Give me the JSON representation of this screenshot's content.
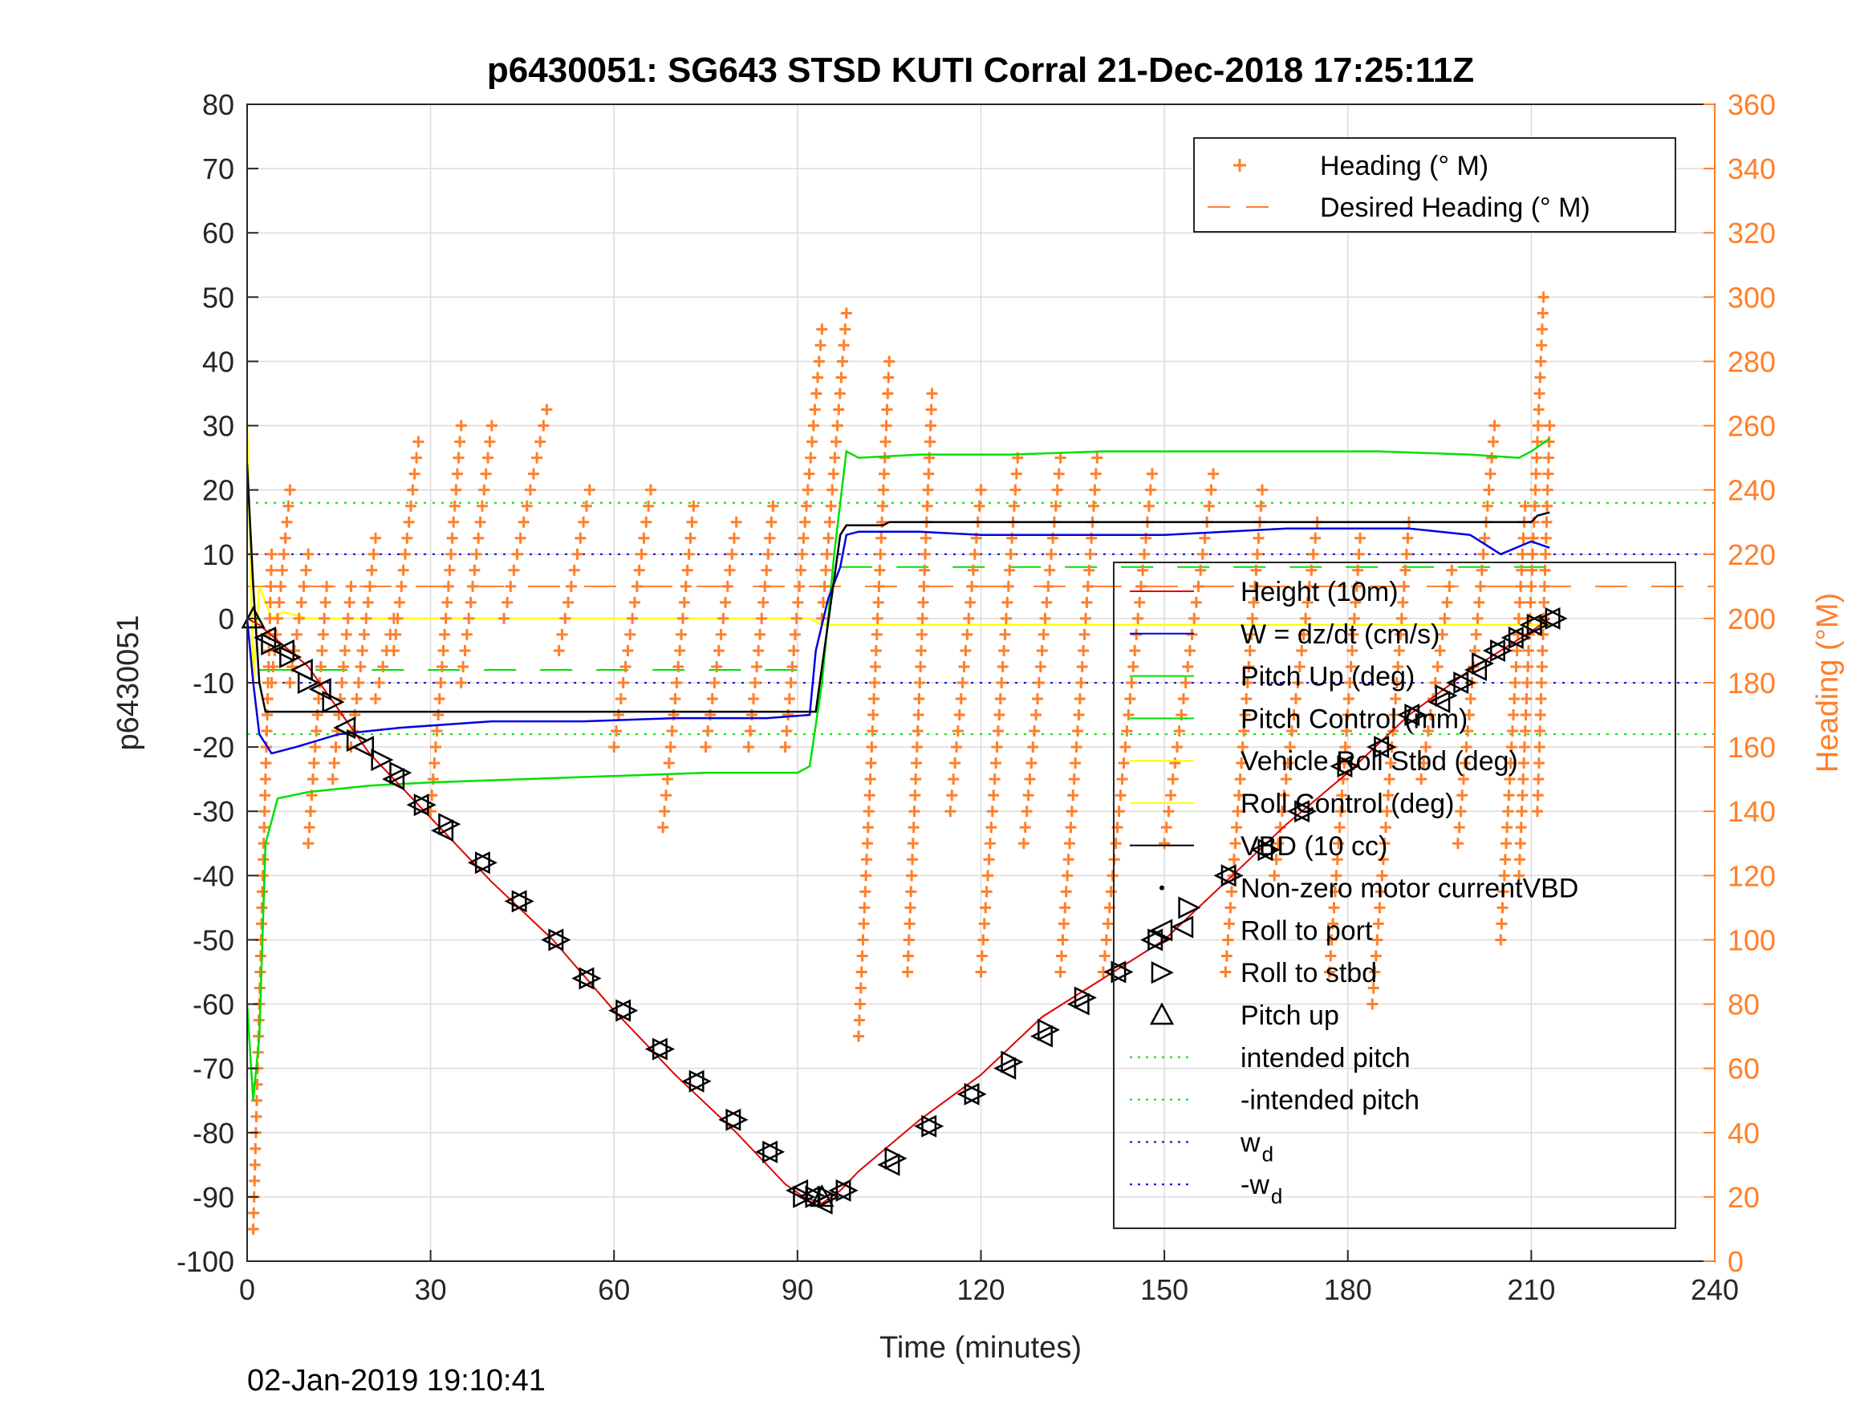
{
  "chart_data": {
    "type": "line",
    "title": "p6430051: SG643 STSD KUTI Corral 21-Dec-2018 17:25:11Z",
    "timestamp": "02-Jan-2019 19:10:41",
    "xlabel": "Time (minutes)",
    "ylabel": "p6430051",
    "ylabel_right": "Heading (°M)",
    "xlim": [
      0,
      240
    ],
    "ylim": [
      -100,
      80
    ],
    "ylim_right": [
      0,
      360
    ],
    "xticks": [
      "0",
      "30",
      "60",
      "90",
      "120",
      "150",
      "180",
      "210",
      "240"
    ],
    "yticks": [
      "80",
      "70",
      "60",
      "50",
      "40",
      "30",
      "20",
      "10",
      "0",
      "-10",
      "-20",
      "-30",
      "-40",
      "-50",
      "-60",
      "-70",
      "-80",
      "-90",
      "-100"
    ],
    "yticks_right": [
      "360",
      "340",
      "320",
      "300",
      "280",
      "260",
      "240",
      "220",
      "200",
      "180",
      "160",
      "140",
      "120",
      "100",
      "80",
      "60",
      "40",
      "20",
      "0"
    ],
    "grid": true,
    "colors": {
      "heading": "#ff7f2a",
      "height": "#e00000",
      "w": "#0000e0",
      "pitch": "#00e000",
      "roll": "#ffff00",
      "vbd": "#000000"
    },
    "legend_top": [
      {
        "label": "Heading (° M)",
        "style": "plus",
        "color": "#ff7f2a"
      },
      {
        "label": "Desired Heading (° M)",
        "style": "dash",
        "color": "#ff7f2a"
      }
    ],
    "legend_main": [
      {
        "label": "Height (10m)",
        "style": "line",
        "color": "#e00000"
      },
      {
        "label": "W = dz/dt (cm/s)",
        "style": "line",
        "color": "#0000e0"
      },
      {
        "label": "Pitch Up (deg)",
        "style": "line",
        "color": "#00e000"
      },
      {
        "label": "Pitch Control (mm)",
        "style": "line",
        "color": "#00e000"
      },
      {
        "label": "Vehicle Roll Stbd (deg)",
        "style": "line",
        "color": "#ffff00"
      },
      {
        "label": "Roll Control (deg)",
        "style": "line",
        "color": "#ffff00"
      },
      {
        "label": "VBD (10 cc)",
        "style": "line",
        "color": "#000000"
      },
      {
        "label": "Non-zero motor currentVBD",
        "style": "dot",
        "color": "#000000"
      },
      {
        "label": "Roll to port",
        "style": "tri-left",
        "color": "#000000"
      },
      {
        "label": "Roll to stbd",
        "style": "tri-right",
        "color": "#000000"
      },
      {
        "label": "Pitch up",
        "style": "tri-up",
        "color": "#000000"
      },
      {
        "label": "intended pitch",
        "style": "dotted",
        "color": "#00e000"
      },
      {
        "label": "-intended pitch",
        "style": "dotted",
        "color": "#00e000"
      },
      {
        "label": "w",
        "sub": "d",
        "style": "dotted",
        "color": "#0000e0"
      },
      {
        "label": "-w",
        "sub": "d",
        "style": "dotted",
        "color": "#0000e0"
      }
    ],
    "series": [
      {
        "name": "Height (10m)",
        "axis": "left",
        "x": [
          0,
          2,
          10,
          20,
          30,
          40,
          50,
          60,
          70,
          80,
          88,
          91,
          94,
          97,
          100,
          110,
          120,
          130,
          140,
          150,
          160,
          170,
          180,
          190,
          200,
          210,
          213
        ],
        "y": [
          0,
          -1,
          -7.5,
          -21,
          -31,
          -41,
          -50,
          -61,
          -71,
          -80,
          -88,
          -90,
          -91,
          -89,
          -86,
          -78,
          -71,
          -62,
          -56,
          -50,
          -41,
          -32,
          -24,
          -15,
          -8,
          -2,
          0
        ]
      },
      {
        "name": "W = dz/dt (cm/s)",
        "axis": "left",
        "x": [
          0,
          1,
          2,
          4,
          8,
          15,
          25,
          40,
          55,
          70,
          85,
          92,
          93,
          95,
          97,
          98,
          100,
          110,
          120,
          130,
          140,
          150,
          160,
          170,
          180,
          190,
          200,
          205,
          210,
          213
        ],
        "y": [
          0,
          -10,
          -18,
          -21,
          -20,
          -18,
          -17,
          -16,
          -16,
          -15.5,
          -15.5,
          -15,
          -5,
          3,
          8,
          13,
          13.5,
          13.5,
          13,
          13,
          13,
          13,
          13.5,
          14,
          14,
          14,
          13,
          10,
          12,
          11
        ]
      },
      {
        "name": "Pitch Up (deg)",
        "axis": "left",
        "x": [
          0,
          1,
          2,
          3,
          5,
          10,
          20,
          30,
          45,
          60,
          75,
          90,
          92,
          94,
          96,
          98,
          100,
          110,
          125,
          140,
          155,
          170,
          185,
          200,
          208,
          210,
          213
        ],
        "y": [
          -60,
          -75,
          -65,
          -35,
          -28,
          -27,
          -26,
          -25.5,
          -25,
          -24.5,
          -24,
          -24,
          -23,
          -10,
          10,
          26,
          25,
          25.5,
          25.5,
          26,
          26,
          26,
          26,
          25.5,
          25,
          26,
          28
        ]
      },
      {
        "name": "Vehicle Roll Stbd (deg)",
        "axis": "left",
        "x": [
          0,
          1,
          2,
          4,
          6,
          10,
          20,
          40,
          60,
          80,
          90,
          92,
          94,
          96,
          100,
          120,
          140,
          160,
          180,
          200,
          213
        ],
        "y": [
          30,
          -10,
          5,
          0,
          1,
          0,
          0,
          0,
          0,
          0,
          0,
          0,
          -1,
          -1,
          -1,
          -1,
          -1,
          -1,
          -1,
          -1,
          -1
        ]
      },
      {
        "name": "VBD (10 cc)",
        "axis": "left",
        "x": [
          0,
          1,
          2,
          3,
          4,
          91,
          92,
          93,
          97,
          98,
          104,
          105,
          190,
          200,
          205,
          210,
          211,
          213
        ],
        "y": [
          24,
          5,
          -10,
          -14.5,
          -14.5,
          -14.5,
          -14.5,
          -14.5,
          13,
          14.5,
          14.5,
          15,
          15,
          15,
          15,
          15,
          16,
          16.5
        ]
      },
      {
        "name": "Heading (° M)",
        "axis": "right",
        "style": "plus",
        "segments": [
          {
            "x0": 1,
            "x1": 4,
            "y0": 10,
            "y1": 220
          },
          {
            "x0": 4,
            "x1": 7,
            "y0": 180,
            "y1": 240
          },
          {
            "x0": 7,
            "x1": 10,
            "y0": 180,
            "y1": 220
          },
          {
            "x0": 10,
            "x1": 13,
            "y0": 130,
            "y1": 210
          },
          {
            "x0": 14,
            "x1": 17,
            "y0": 150,
            "y1": 210
          },
          {
            "x0": 17,
            "x1": 21,
            "y0": 160,
            "y1": 225
          },
          {
            "x0": 21,
            "x1": 24,
            "y0": 175,
            "y1": 200
          },
          {
            "x0": 24,
            "x1": 28,
            "y0": 190,
            "y1": 255
          },
          {
            "x0": 30,
            "x1": 35,
            "y0": 140,
            "y1": 260
          },
          {
            "x0": 35,
            "x1": 40,
            "y0": 180,
            "y1": 260
          },
          {
            "x0": 42,
            "x1": 49,
            "y0": 200,
            "y1": 265
          },
          {
            "x0": 51,
            "x1": 56,
            "y0": 190,
            "y1": 240
          },
          {
            "x0": 60,
            "x1": 66,
            "y0": 160,
            "y1": 240
          },
          {
            "x0": 68,
            "x1": 73,
            "y0": 135,
            "y1": 235
          },
          {
            "x0": 75,
            "x1": 80,
            "y0": 160,
            "y1": 230
          },
          {
            "x0": 82,
            "x1": 86,
            "y0": 160,
            "y1": 235
          },
          {
            "x0": 88,
            "x1": 94,
            "y0": 160,
            "y1": 290
          },
          {
            "x0": 94,
            "x1": 98,
            "y0": 200,
            "y1": 295
          },
          {
            "x0": 100,
            "x1": 105,
            "y0": 70,
            "y1": 280
          },
          {
            "x0": 108,
            "x1": 112,
            "y0": 90,
            "y1": 270
          },
          {
            "x0": 115,
            "x1": 120,
            "y0": 140,
            "y1": 240
          },
          {
            "x0": 120,
            "x1": 126,
            "y0": 90,
            "y1": 250
          },
          {
            "x0": 127,
            "x1": 133,
            "y0": 130,
            "y1": 250
          },
          {
            "x0": 133,
            "x1": 139,
            "y0": 90,
            "y1": 250
          },
          {
            "x0": 140,
            "x1": 148,
            "y0": 90,
            "y1": 245
          },
          {
            "x0": 150,
            "x1": 158,
            "y0": 130,
            "y1": 245
          },
          {
            "x0": 160,
            "x1": 166,
            "y0": 90,
            "y1": 240
          },
          {
            "x0": 168,
            "x1": 175,
            "y0": 120,
            "y1": 230
          },
          {
            "x0": 177,
            "x1": 182,
            "y0": 90,
            "y1": 225
          },
          {
            "x0": 184,
            "x1": 190,
            "y0": 80,
            "y1": 230
          },
          {
            "x0": 192,
            "x1": 197,
            "y0": 150,
            "y1": 215
          },
          {
            "x0": 198,
            "x1": 204,
            "y0": 130,
            "y1": 260
          },
          {
            "x0": 205,
            "x1": 209,
            "y0": 100,
            "y1": 235
          },
          {
            "x0": 208,
            "x1": 212,
            "y0": 120,
            "y1": 300
          },
          {
            "x0": 211,
            "x1": 213,
            "y0": 140,
            "y1": 260
          }
        ]
      }
    ],
    "reference_lines": [
      {
        "name": "intended pitch",
        "axis": "left",
        "y": 18,
        "style": "dotted",
        "color": "#00e000"
      },
      {
        "name": "-intended pitch",
        "axis": "left",
        "y": -18,
        "style": "dotted",
        "color": "#00e000"
      },
      {
        "name": "w_d",
        "axis": "left",
        "y": 10,
        "style": "dotted",
        "color": "#0000e0"
      },
      {
        "name": "-w_d",
        "axis": "left",
        "y": -10,
        "style": "dotted",
        "color": "#0000e0"
      },
      {
        "name": "Desired Heading (° M)",
        "axis": "right",
        "y": 210,
        "style": "dashed",
        "color": "#ff7f2a"
      },
      {
        "name": "Pitch Control (mm)",
        "axis": "left",
        "x": [
          2,
          92
        ],
        "y": -8,
        "x2": [
          97,
          213
        ],
        "y2": 8,
        "style": "dashed",
        "color": "#00e000"
      }
    ],
    "markers": {
      "pitch_up": [
        [
          1,
          0
        ],
        [
          94,
          -90
        ]
      ],
      "roll_to_port": [
        [
          3,
          -3
        ],
        [
          6,
          -5
        ],
        [
          9,
          -8
        ],
        [
          12,
          -11
        ],
        [
          16,
          -17
        ],
        [
          19,
          -20
        ],
        [
          24,
          -25
        ],
        [
          28,
          -29
        ],
        [
          32,
          -33
        ],
        [
          38,
          -38
        ],
        [
          44,
          -44
        ],
        [
          50,
          -50
        ],
        [
          55,
          -56
        ],
        [
          61,
          -61
        ],
        [
          67,
          -67
        ],
        [
          73,
          -72
        ],
        [
          79,
          -78
        ],
        [
          85,
          -83
        ],
        [
          90,
          -89
        ],
        [
          92,
          -90
        ],
        [
          94,
          -91
        ],
        [
          97,
          -89
        ],
        [
          105,
          -85
        ],
        [
          111,
          -79
        ],
        [
          118,
          -74
        ],
        [
          124,
          -70
        ],
        [
          130,
          -65
        ],
        [
          136,
          -60
        ],
        [
          142,
          -55
        ],
        [
          148,
          -50
        ],
        [
          153,
          -48
        ],
        [
          160,
          -40
        ],
        [
          166,
          -36
        ],
        [
          172,
          -30
        ],
        [
          179,
          -23
        ],
        [
          185,
          -20
        ],
        [
          190,
          -15
        ],
        [
          195,
          -13
        ],
        [
          198,
          -10
        ],
        [
          201,
          -8
        ],
        [
          204,
          -5
        ],
        [
          207,
          -3
        ],
        [
          210,
          -1
        ],
        [
          213,
          0
        ]
      ],
      "roll_to_stbd": [
        [
          4,
          -4
        ],
        [
          7,
          -6
        ],
        [
          10,
          -10
        ],
        [
          14,
          -13
        ],
        [
          18,
          -19
        ],
        [
          22,
          -22
        ],
        [
          25,
          -24
        ],
        [
          29,
          -29
        ],
        [
          33,
          -32
        ],
        [
          39,
          -38
        ],
        [
          45,
          -44
        ],
        [
          51,
          -50
        ],
        [
          56,
          -56
        ],
        [
          62,
          -61
        ],
        [
          68,
          -67
        ],
        [
          74,
          -72
        ],
        [
          80,
          -78
        ],
        [
          86,
          -83
        ],
        [
          91,
          -90
        ],
        [
          93,
          -90
        ],
        [
          95,
          -90
        ],
        [
          98,
          -89
        ],
        [
          106,
          -84
        ],
        [
          112,
          -79
        ],
        [
          119,
          -74
        ],
        [
          125,
          -69
        ],
        [
          131,
          -64
        ],
        [
          137,
          -59
        ],
        [
          143,
          -55
        ],
        [
          149,
          -50
        ],
        [
          154,
          -45
        ],
        [
          161,
          -40
        ],
        [
          167,
          -36
        ],
        [
          173,
          -30
        ],
        [
          180,
          -23
        ],
        [
          186,
          -20
        ],
        [
          191,
          -15
        ],
        [
          196,
          -12
        ],
        [
          199,
          -10
        ],
        [
          202,
          -7
        ],
        [
          205,
          -5
        ],
        [
          208,
          -3
        ],
        [
          211,
          -1
        ],
        [
          214,
          0
        ]
      ]
    }
  }
}
